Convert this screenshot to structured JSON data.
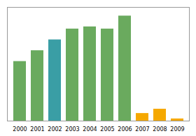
{
  "chart_data": {
    "type": "bar",
    "categories": [
      "2000",
      "2001",
      "2002",
      "2003",
      "2004",
      "2005",
      "2006",
      "2007",
      "2008",
      "2009"
    ],
    "values": [
      55,
      65,
      75,
      85,
      87,
      85,
      97,
      7,
      11,
      2
    ],
    "colors": [
      "#6aaa5e",
      "#6aaa5e",
      "#3a9ea5",
      "#6aaa5e",
      "#6aaa5e",
      "#6aaa5e",
      "#6aaa5e",
      "#f5a800",
      "#f5a800",
      "#f5a800"
    ],
    "ylim": [
      0,
      105
    ],
    "grid": false,
    "tick_labels": "x"
  }
}
